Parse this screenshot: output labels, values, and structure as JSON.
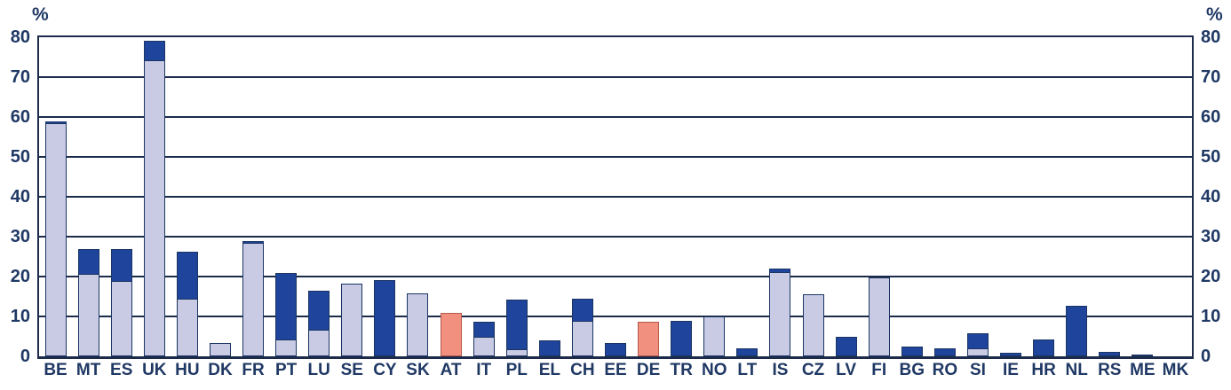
{
  "chart_data": {
    "type": "bar",
    "stacked": true,
    "title": "",
    "xlabel": "",
    "ylabel": "%",
    "unit_label": "%",
    "ylim": [
      0,
      80
    ],
    "yticks": [
      0,
      10,
      20,
      30,
      40,
      50,
      60,
      70,
      80
    ],
    "grid": "horizontal",
    "axis_labels_both_sides": true,
    "legend": "none",
    "categories": [
      "BE",
      "MT",
      "ES",
      "UK",
      "HU",
      "DK",
      "FR",
      "PT",
      "LU",
      "SE",
      "CY",
      "SK",
      "AT",
      "IT",
      "PL",
      "EL",
      "CH",
      "EE",
      "DE",
      "TR",
      "NO",
      "LT",
      "IS",
      "CZ",
      "LV",
      "FI",
      "BG",
      "RO",
      "SI",
      "IE",
      "HR",
      "NL",
      "RS",
      "ME",
      "MK"
    ],
    "series": [
      {
        "name": "lower-segment",
        "color": "#c9cbe4",
        "values": [
          58.5,
          20.6,
          18.8,
          74.3,
          14.5,
          3.4,
          28.4,
          4.3,
          6.6,
          18.3,
          0,
          15.8,
          0,
          4.9,
          1.8,
          0,
          8.8,
          0,
          0,
          0,
          9.9,
          0,
          21.2,
          15.5,
          0,
          19.7,
          0,
          0,
          2.0,
          0,
          0,
          0,
          0,
          0,
          0
        ]
      },
      {
        "name": "upper-segment",
        "color": "#1e449b",
        "values": [
          0.7,
          6.6,
          8.4,
          5.2,
          12.1,
          0,
          0.8,
          17.0,
          10.2,
          0,
          19.2,
          0,
          0,
          4.0,
          12.7,
          4.0,
          5.9,
          3.4,
          0,
          8.9,
          0,
          2.1,
          1.1,
          0,
          4.8,
          0,
          2.5,
          1.9,
          4.0,
          0.9,
          4.2,
          12.7,
          1.2,
          0.4,
          0
        ]
      },
      {
        "name": "highlighted-country",
        "color": "#f1907e",
        "values": [
          0,
          0,
          0,
          0,
          0,
          0,
          0,
          0,
          0,
          0,
          0,
          0,
          10.9,
          0,
          0,
          0,
          0,
          0,
          8.6,
          0,
          0,
          0,
          0,
          0,
          0,
          0,
          0,
          0,
          0,
          0,
          0,
          0,
          0,
          0,
          0
        ]
      }
    ],
    "colors": {
      "axis_and_grid": "#1c2b4a",
      "tick_label_text": "#1f3864",
      "bar_outline": "#1b3563",
      "highlight_outline": "#b5594a",
      "background": "#ffffff"
    }
  }
}
